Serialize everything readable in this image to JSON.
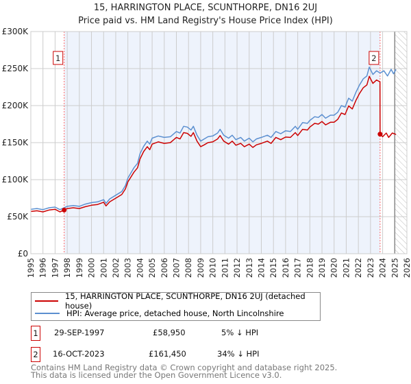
{
  "title_line1": "15, HARRINGTON PLACE, SCUNTHORPE, DN16 2UJ",
  "title_line2": "Price paid vs. HM Land Registry's House Price Index (HPI)",
  "colors": {
    "property": "#cc0000",
    "hpi": "#5b8fd0",
    "shade": "#eef3fc"
  },
  "chart_data": {
    "type": "line",
    "title": "Price paid vs. HM Land Registry's House Price Index (HPI)",
    "xlim": [
      1995,
      2026
    ],
    "ylim": [
      0,
      300000
    ],
    "xticks": [
      "1995",
      "1996",
      "1997",
      "1998",
      "1999",
      "2000",
      "2001",
      "2002",
      "2003",
      "2004",
      "2005",
      "2006",
      "2007",
      "2008",
      "2009",
      "2010",
      "2011",
      "2012",
      "2013",
      "2014",
      "2015",
      "2016",
      "2017",
      "2018",
      "2019",
      "2020",
      "2021",
      "2022",
      "2023",
      "2024",
      "2025",
      "2026"
    ],
    "yticks": [
      {
        "v": 0,
        "label": "£0"
      },
      {
        "v": 50000,
        "label": "£50K"
      },
      {
        "v": 100000,
        "label": "£100K"
      },
      {
        "v": 150000,
        "label": "£150K"
      },
      {
        "v": 200000,
        "label": "£200K"
      },
      {
        "v": 250000,
        "label": "£250K"
      },
      {
        "v": 300000,
        "label": "£300K"
      }
    ],
    "grid": true,
    "shaded_range": [
      1997.75,
      2023.79
    ],
    "forecast_from": 2025.0,
    "series": [
      {
        "name": "15, HARRINGTON PLACE, SCUNTHORPE, DN16 2UJ (detached house)",
        "color": "#cc0000",
        "x": [
          1995.0,
          1995.5,
          1996.0,
          1996.5,
          1997.0,
          1997.4,
          1997.75,
          1998.0,
          1998.5,
          1999.0,
          1999.5,
          2000.0,
          2000.5,
          2001.0,
          2001.2,
          2001.5,
          2002.0,
          2002.5,
          2002.8,
          2003.0,
          2003.5,
          2003.8,
          2004.0,
          2004.3,
          2004.6,
          2004.8,
          2005.0,
          2005.5,
          2006.0,
          2006.5,
          2007.0,
          2007.3,
          2007.6,
          2007.9,
          2008.2,
          2008.4,
          2008.7,
          2009.0,
          2009.3,
          2009.6,
          2010.0,
          2010.4,
          2010.6,
          2010.9,
          2011.3,
          2011.6,
          2011.9,
          2012.3,
          2012.6,
          2013.0,
          2013.3,
          2013.6,
          2014.0,
          2014.5,
          2014.8,
          2015.2,
          2015.6,
          2016.0,
          2016.4,
          2016.8,
          2017.0,
          2017.4,
          2017.8,
          2018.0,
          2018.4,
          2018.7,
          2019.0,
          2019.3,
          2019.7,
          2020.0,
          2020.3,
          2020.6,
          2020.9,
          2021.2,
          2021.5,
          2021.8,
          2022.1,
          2022.4,
          2022.7,
          2022.9,
          2023.2,
          2023.5,
          2023.78,
          2023.79,
          2024.0,
          2024.3,
          2024.5,
          2024.8,
          2025.1
        ],
        "y": [
          57000,
          58000,
          56500,
          59000,
          60000,
          56500,
          58950,
          61000,
          62000,
          61000,
          63500,
          65500,
          66500,
          69500,
          64500,
          70000,
          75000,
          80000,
          87500,
          97000,
          110000,
          116000,
          128000,
          138000,
          144500,
          140500,
          148000,
          151000,
          149000,
          150000,
          157000,
          155000,
          163500,
          162500,
          158500,
          163500,
          152000,
          144500,
          147000,
          150000,
          151000,
          155000,
          159500,
          152000,
          148000,
          152000,
          146500,
          149000,
          144500,
          148000,
          143500,
          147000,
          149000,
          152000,
          149000,
          157000,
          154000,
          157500,
          157000,
          163500,
          159500,
          168000,
          167000,
          171000,
          176000,
          175000,
          178500,
          174000,
          177500,
          177500,
          181500,
          190000,
          188000,
          199500,
          195500,
          207000,
          216500,
          224000,
          228000,
          239500,
          230000,
          234500,
          232000,
          161450,
          158000,
          163000,
          157000,
          163000,
          161000
        ]
      },
      {
        "name": "HPI: Average price, detached house, North Lincolnshire",
        "color": "#5b8fd0",
        "x": [
          1995.0,
          1995.5,
          1996.0,
          1996.5,
          1997.0,
          1997.4,
          1997.75,
          1998.0,
          1998.5,
          1999.0,
          1999.5,
          2000.0,
          2000.5,
          2001.0,
          2001.2,
          2001.5,
          2002.0,
          2002.5,
          2002.8,
          2003.0,
          2003.5,
          2003.8,
          2004.0,
          2004.3,
          2004.6,
          2004.8,
          2005.0,
          2005.5,
          2006.0,
          2006.5,
          2007.0,
          2007.3,
          2007.6,
          2007.9,
          2008.2,
          2008.4,
          2008.7,
          2009.0,
          2009.3,
          2009.6,
          2010.0,
          2010.4,
          2010.6,
          2010.9,
          2011.3,
          2011.6,
          2011.9,
          2012.3,
          2012.6,
          2013.0,
          2013.3,
          2013.6,
          2014.0,
          2014.5,
          2014.8,
          2015.2,
          2015.6,
          2016.0,
          2016.4,
          2016.8,
          2017.0,
          2017.4,
          2017.8,
          2018.0,
          2018.4,
          2018.7,
          2019.0,
          2019.3,
          2019.7,
          2020.0,
          2020.3,
          2020.6,
          2020.9,
          2021.2,
          2021.5,
          2021.8,
          2022.1,
          2022.4,
          2022.7,
          2022.9,
          2023.2,
          2023.5,
          2023.8,
          2024.1,
          2024.4,
          2024.7,
          2024.9,
          2025.1
        ],
        "y": [
          60000,
          61000,
          59500,
          62000,
          63000,
          59500,
          62000,
          64000,
          65000,
          64000,
          67000,
          69000,
          70000,
          73000,
          68000,
          74000,
          79000,
          84000,
          92000,
          102000,
          116000,
          122000,
          135000,
          145000,
          152000,
          148000,
          156000,
          159000,
          157000,
          158000,
          165000,
          163000,
          172000,
          171000,
          167000,
          172000,
          160000,
          152000,
          155000,
          158000,
          159000,
          163000,
          168000,
          160000,
          156000,
          160000,
          154000,
          157000,
          152000,
          156000,
          151000,
          155000,
          157000,
          160000,
          157000,
          165000,
          162000,
          166000,
          165000,
          172000,
          168000,
          177000,
          176000,
          180000,
          185000,
          184000,
          188000,
          183000,
          187000,
          187000,
          191000,
          200000,
          198000,
          210000,
          206000,
          218000,
          228000,
          236000,
          240000,
          252000,
          242000,
          247000,
          244000,
          247000,
          240000,
          249000,
          243000,
          249000
        ]
      }
    ],
    "sales": [
      {
        "label": "1",
        "x": 1997.75,
        "price": 58950
      },
      {
        "label": "2",
        "x": 2023.79,
        "price": 161450
      }
    ]
  },
  "legend": {
    "property": "15, HARRINGTON PLACE, SCUNTHORPE, DN16 2UJ (detached house)",
    "hpi": "HPI: Average price, detached house, North Lincolnshire"
  },
  "sales_table": [
    {
      "num": "1",
      "date": "29-SEP-1997",
      "price": "£58,950",
      "delta": "5% ↓ HPI"
    },
    {
      "num": "2",
      "date": "16-OCT-2023",
      "price": "£161,450",
      "delta": "34% ↓ HPI"
    }
  ],
  "footer": {
    "line1": "Contains HM Land Registry data © Crown copyright and database right 2025.",
    "line2": "This data is licensed under the Open Government Licence v3.0."
  }
}
